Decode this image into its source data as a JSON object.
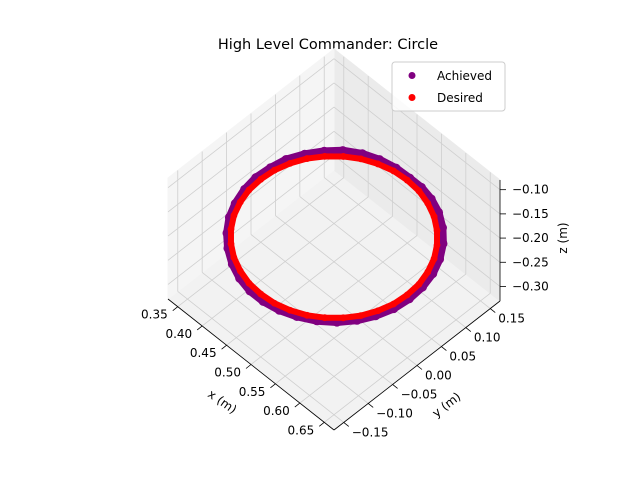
{
  "chart_data": {
    "type": "scatter",
    "projection": "3d",
    "title": "High Level Commander: Circle",
    "xlabel": "x (m)",
    "ylabel": "y (m)",
    "zlabel": "z (m)",
    "xlim": [
      0.33,
      0.67
    ],
    "ylim": [
      -0.17,
      0.17
    ],
    "zlim": [
      -0.33,
      -0.08
    ],
    "xticks": [
      "0.35",
      "0.40",
      "0.45",
      "0.50",
      "0.55",
      "0.60",
      "0.65"
    ],
    "yticks": [
      "−0.15",
      "−0.10",
      "−0.05",
      "0.00",
      "0.05",
      "0.10",
      "0.15"
    ],
    "zticks": [
      "−0.10",
      "−0.15",
      "−0.20",
      "−0.25",
      "−0.30"
    ],
    "xtick_values": [
      0.35,
      0.4,
      0.45,
      0.5,
      0.55,
      0.6,
      0.65
    ],
    "ytick_values": [
      -0.15,
      -0.1,
      -0.05,
      0.0,
      0.05,
      0.1,
      0.15
    ],
    "ztick_values": [
      -0.1,
      -0.15,
      -0.2,
      -0.25,
      -0.3
    ],
    "grid": true,
    "legend": "top-right",
    "series": [
      {
        "name": "Achieved",
        "color": "#800080",
        "points": [
          [
            0.5,
            0.155,
            -0.2
          ],
          [
            0.473,
            0.154,
            -0.2
          ],
          [
            0.445,
            0.148,
            -0.2
          ],
          [
            0.42,
            0.138,
            -0.2
          ],
          [
            0.396,
            0.122,
            -0.2
          ],
          [
            0.378,
            0.102,
            -0.2
          ],
          [
            0.362,
            0.078,
            -0.2
          ],
          [
            0.35,
            0.052,
            -0.2
          ],
          [
            0.345,
            0.025,
            -0.2
          ],
          [
            0.343,
            -0.003,
            -0.2
          ],
          [
            0.347,
            -0.03,
            -0.2
          ],
          [
            0.356,
            -0.058,
            -0.2
          ],
          [
            0.368,
            -0.082,
            -0.2
          ],
          [
            0.386,
            -0.105,
            -0.2
          ],
          [
            0.407,
            -0.124,
            -0.2
          ],
          [
            0.432,
            -0.14,
            -0.2
          ],
          [
            0.458,
            -0.151,
            -0.2
          ],
          [
            0.485,
            -0.157,
            -0.2
          ],
          [
            0.512,
            -0.157,
            -0.2
          ],
          [
            0.54,
            -0.152,
            -0.2
          ],
          [
            0.566,
            -0.142,
            -0.2
          ],
          [
            0.592,
            -0.127,
            -0.2
          ],
          [
            0.614,
            -0.108,
            -0.2
          ],
          [
            0.632,
            -0.085,
            -0.2
          ],
          [
            0.645,
            -0.06,
            -0.2
          ],
          [
            0.654,
            -0.032,
            -0.2
          ],
          [
            0.657,
            -0.003,
            -0.2
          ],
          [
            0.655,
            0.026,
            -0.2
          ],
          [
            0.648,
            0.054,
            -0.2
          ],
          [
            0.636,
            0.08,
            -0.2
          ],
          [
            0.619,
            0.104,
            -0.2
          ],
          [
            0.598,
            0.124,
            -0.2
          ],
          [
            0.574,
            0.14,
            -0.2
          ],
          [
            0.549,
            0.15,
            -0.2
          ],
          [
            0.524,
            0.155,
            -0.2
          ]
        ]
      },
      {
        "name": "Desired",
        "color": "#ff0000",
        "points": [
          [
            0.65,
            0.0,
            -0.2
          ],
          [
            0.648,
            0.026,
            -0.2
          ],
          [
            0.641,
            0.051,
            -0.2
          ],
          [
            0.63,
            0.075,
            -0.2
          ],
          [
            0.615,
            0.096,
            -0.2
          ],
          [
            0.596,
            0.115,
            -0.2
          ],
          [
            0.575,
            0.13,
            -0.2
          ],
          [
            0.551,
            0.141,
            -0.2
          ],
          [
            0.526,
            0.148,
            -0.2
          ],
          [
            0.5,
            0.15,
            -0.2
          ],
          [
            0.474,
            0.148,
            -0.2
          ],
          [
            0.449,
            0.141,
            -0.2
          ],
          [
            0.425,
            0.13,
            -0.2
          ],
          [
            0.404,
            0.115,
            -0.2
          ],
          [
            0.385,
            0.096,
            -0.2
          ],
          [
            0.37,
            0.075,
            -0.2
          ],
          [
            0.359,
            0.051,
            -0.2
          ],
          [
            0.352,
            0.026,
            -0.2
          ],
          [
            0.35,
            0.0,
            -0.2
          ],
          [
            0.352,
            -0.026,
            -0.2
          ],
          [
            0.359,
            -0.051,
            -0.2
          ],
          [
            0.37,
            -0.075,
            -0.2
          ],
          [
            0.385,
            -0.096,
            -0.2
          ],
          [
            0.404,
            -0.115,
            -0.2
          ],
          [
            0.425,
            -0.13,
            -0.2
          ],
          [
            0.449,
            -0.141,
            -0.2
          ],
          [
            0.474,
            -0.148,
            -0.2
          ],
          [
            0.5,
            -0.15,
            -0.2
          ],
          [
            0.526,
            -0.148,
            -0.2
          ],
          [
            0.551,
            -0.141,
            -0.2
          ],
          [
            0.575,
            -0.13,
            -0.2
          ],
          [
            0.596,
            -0.115,
            -0.2
          ],
          [
            0.615,
            -0.096,
            -0.2
          ],
          [
            0.63,
            -0.075,
            -0.2
          ],
          [
            0.641,
            -0.051,
            -0.2
          ],
          [
            0.648,
            -0.026,
            -0.2
          ]
        ]
      }
    ]
  }
}
